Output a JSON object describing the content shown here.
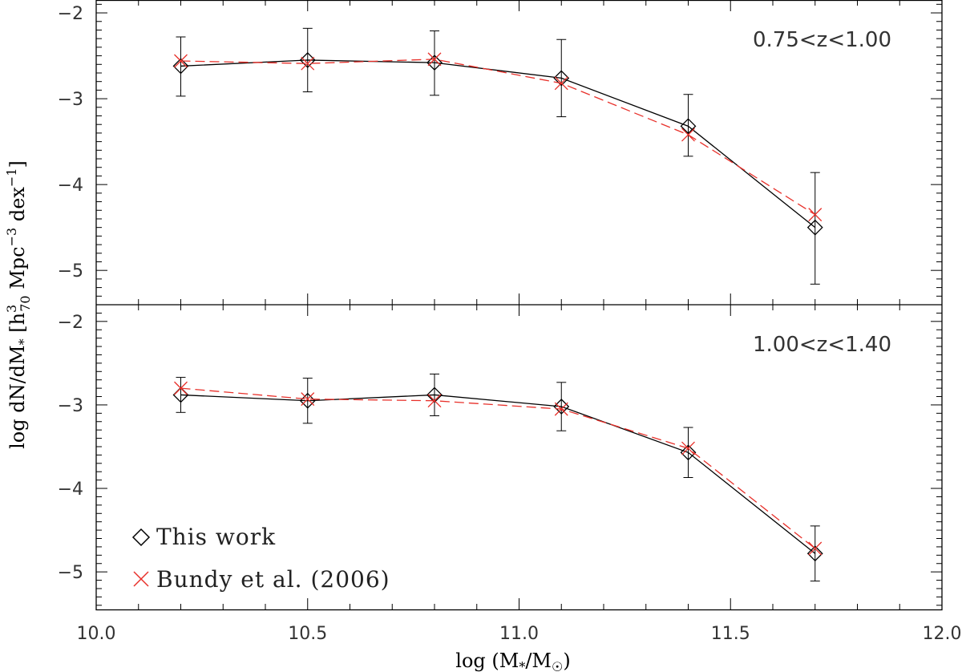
{
  "chart_data": {
    "type": "line",
    "xlabel": "log (M*/M☉)",
    "ylabel": "log dN/dM* [h370 Mpc-3 dex-1]",
    "xlim": [
      10.0,
      12.0
    ],
    "x_ticks": [
      "10.0",
      "10.5",
      "11.0",
      "11.5",
      "12.0"
    ],
    "legend": {
      "placement": "bottom-left",
      "entries": [
        {
          "label": "This work",
          "marker": "diamond",
          "color": "#000000"
        },
        {
          "label": "Bundy et al. (2006)",
          "marker": "x",
          "color": "#e8302a"
        }
      ]
    },
    "panels": [
      {
        "label": "0.75<z<1.00",
        "ylim": [
          -5.4,
          -1.85
        ],
        "y_ticks": [
          "−2",
          "−3",
          "−4",
          "−5"
        ],
        "series": [
          {
            "name": "This work",
            "color": "#000000",
            "line": "solid",
            "marker": "diamond",
            "x": [
              10.2,
              10.5,
              10.8,
              11.1,
              11.4,
              11.7
            ],
            "y": [
              -2.62,
              -2.55,
              -2.58,
              -2.76,
              -3.32,
              -4.5
            ],
            "err_low": [
              0.35,
              0.37,
              0.38,
              0.45,
              0.35,
              0.66
            ],
            "err_high": [
              0.34,
              0.37,
              0.37,
              0.45,
              0.37,
              0.64
            ]
          },
          {
            "name": "Bundy et al. (2006)",
            "color": "#e8302a",
            "line": "dashed",
            "marker": "x",
            "x": [
              10.2,
              10.5,
              10.8,
              11.1,
              11.4,
              11.7
            ],
            "y": [
              -2.56,
              -2.59,
              -2.54,
              -2.82,
              -3.42,
              -4.35
            ]
          }
        ]
      },
      {
        "label": "1.00<z<1.40",
        "ylim": [
          -5.45,
          -1.8
        ],
        "y_ticks": [
          "−2",
          "−3",
          "−4",
          "−5"
        ],
        "series": [
          {
            "name": "This work",
            "color": "#000000",
            "line": "solid",
            "marker": "diamond",
            "x": [
              10.2,
              10.5,
              10.8,
              11.1,
              11.4,
              11.7
            ],
            "y": [
              -2.88,
              -2.95,
              -2.88,
              -3.02,
              -3.57,
              -4.78
            ],
            "err_low": [
              0.21,
              0.27,
              0.25,
              0.29,
              0.3,
              0.33
            ],
            "err_high": [
              0.21,
              0.27,
              0.25,
              0.29,
              0.3,
              0.33
            ]
          },
          {
            "name": "Bundy et al. (2006)",
            "color": "#e8302a",
            "line": "dashed",
            "marker": "x",
            "x": [
              10.2,
              10.5,
              10.8,
              11.1,
              11.4,
              11.7
            ],
            "y": [
              -2.8,
              -2.93,
              -2.95,
              -3.05,
              -3.52,
              -4.72
            ]
          }
        ]
      }
    ]
  }
}
